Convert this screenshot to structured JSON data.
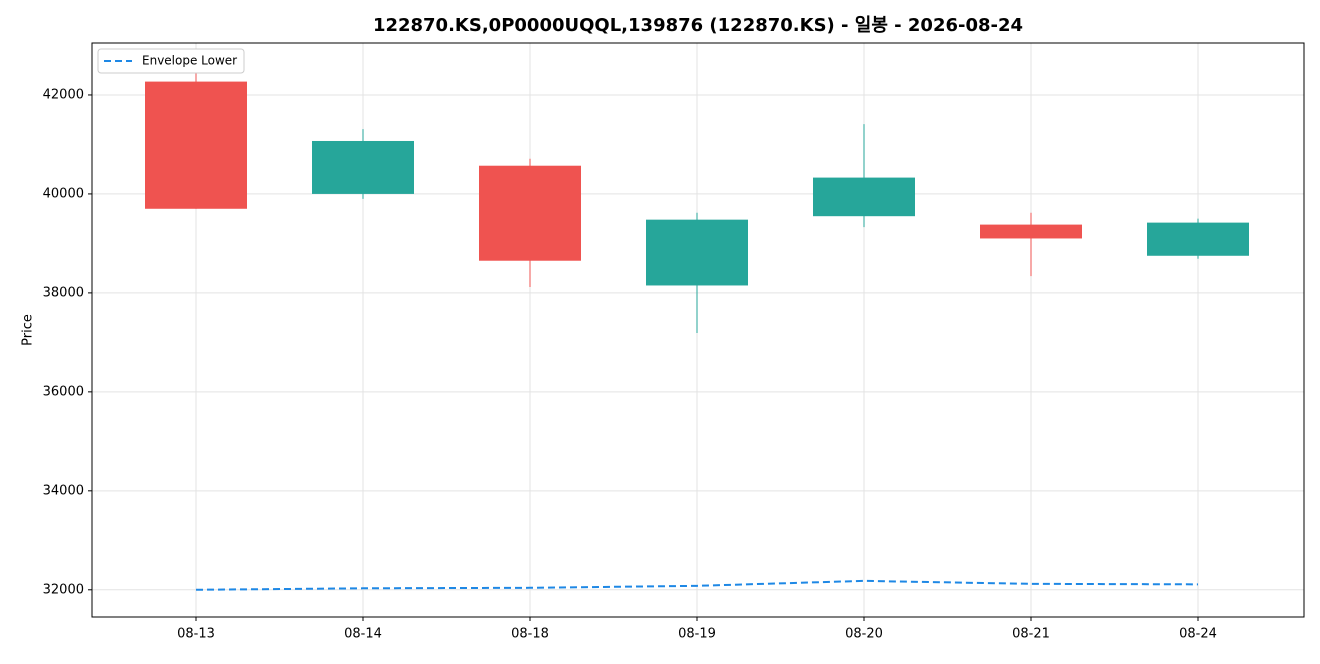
{
  "chart_data": {
    "type": "candlestick",
    "title": "122870.KS,0P0000UQQL,139876 (122870.KS) - 일봉 - 2026-08-24",
    "y_label": "Price",
    "categories": [
      "08-13",
      "08-14",
      "08-18",
      "08-19",
      "08-20",
      "08-21",
      "08-24"
    ],
    "open": [
      42270,
      40000,
      40570,
      38150,
      39550,
      39380,
      38750
    ],
    "high": [
      42470,
      41310,
      40710,
      39620,
      41410,
      39620,
      39500
    ],
    "low": [
      39700,
      39900,
      38120,
      37190,
      39330,
      38340,
      38690
    ],
    "close": [
      39700,
      41070,
      38650,
      39480,
      40330,
      39100,
      39420
    ],
    "up_color": "#26a69a",
    "down_color": "#ef5350",
    "series": [
      {
        "name": "Envelope Lower",
        "color": "#1e88e5",
        "values": [
          32000,
          32030,
          32040,
          32080,
          32180,
          32120,
          32110
        ]
      }
    ],
    "ylim": [
      31450,
      43050
    ],
    "yticks": [
      32000,
      34000,
      36000,
      38000,
      40000,
      42000
    ],
    "grid": true,
    "legend": "upper left"
  }
}
